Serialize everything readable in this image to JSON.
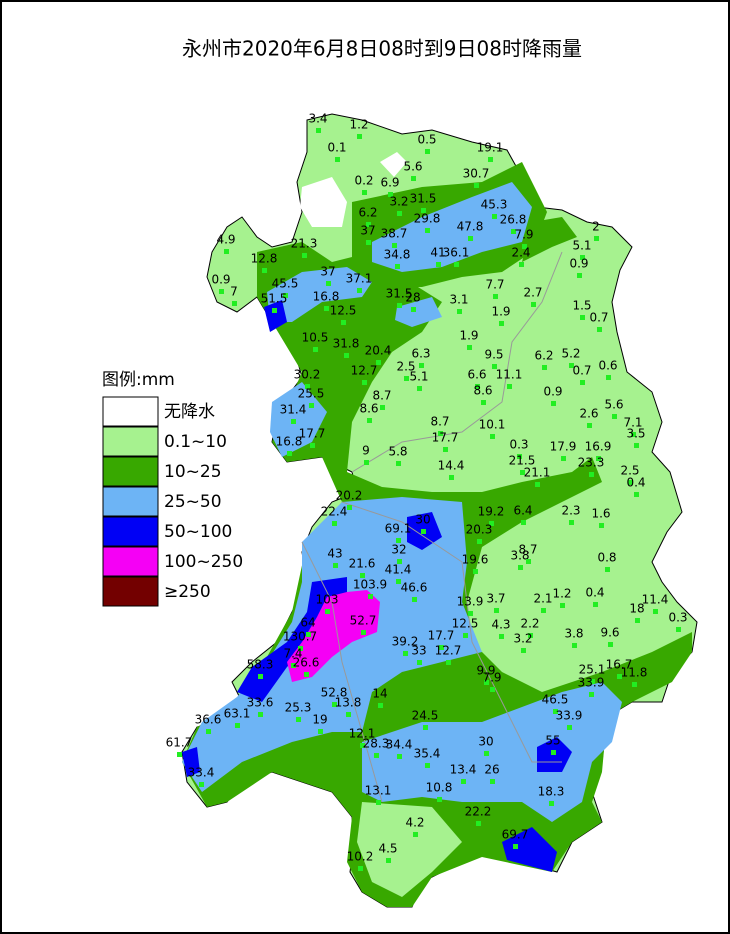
{
  "title": "永州市2020年6月8日08时到9日08时降雨量",
  "legend": {
    "title": "图例:mm",
    "items": [
      {
        "label": "无降水",
        "color": "#ffffff"
      },
      {
        "label": "0.1~10",
        "color": "#a6f28f"
      },
      {
        "label": "10~25",
        "color": "#38a800"
      },
      {
        "label": "25~50",
        "color": "#6db4f5"
      },
      {
        "label": "50~100",
        "color": "#0000f5"
      },
      {
        "label": "100~250",
        "color": "#f500f5"
      },
      {
        "label": "≥250",
        "color": "#730000"
      }
    ]
  },
  "stations": [
    3.4,
    1.2,
    0.1,
    0.5,
    19.1,
    5.6,
    0.2,
    6.9,
    30.7,
    31.5,
    3.2,
    45.3,
    6.2,
    29.8,
    47.8,
    26.8,
    7.9,
    37,
    38.7,
    2,
    5.1,
    34.8,
    41,
    36.1,
    2.4,
    0.9,
    4.9,
    12.8,
    21.3,
    37,
    45.5,
    37.1,
    0.9,
    7,
    7.7,
    2.7,
    16.8,
    31.5,
    28,
    3.1,
    1.5,
    51.5,
    12.5,
    1.9,
    0.7,
    1.9,
    10.5,
    31.8,
    20.4,
    6.3,
    9.5,
    6.2,
    5.2,
    2.5,
    12.7,
    5.1,
    6.6,
    11.1,
    0.7,
    0.6,
    30.2,
    25.5,
    8.7,
    8.6,
    8.6,
    0.9,
    5.6,
    31.4,
    2.6,
    7.1,
    8.7,
    3.5,
    17.7,
    17.7,
    10.1,
    16.8,
    0.3,
    17.9,
    16.9,
    9,
    5.8,
    21.5,
    23.3,
    14.4,
    21.1,
    2.5,
    0.4,
    20.2,
    22.4,
    19.2,
    6.4,
    2.3,
    1.6,
    69.1,
    30,
    20.3,
    32,
    43,
    21.6,
    19.6,
    3.8,
    8.7,
    0.8,
    41.4,
    103.9,
    46.6,
    2.1,
    1.2,
    0.4,
    103,
    13.9,
    3.7,
    11.4,
    18,
    0.3,
    52.7,
    64,
    12.5,
    4.3,
    2.2,
    130.7,
    3.2,
    3.8,
    9.6,
    39.2,
    17.7,
    33,
    12.7,
    7.4,
    26.6,
    58.3,
    16.7,
    25.1,
    11.8,
    9.9,
    7.9,
    33.9,
    52.8,
    14,
    46.5,
    33.6,
    13.8,
    63.1,
    25.3,
    24.5,
    33.9,
    36.6,
    19,
    12.1,
    28.3,
    34.4,
    30,
    55,
    61.7,
    35.4,
    33.4,
    13.4,
    26,
    13.1,
    10.8,
    18.3,
    22.2,
    4.2,
    69.7,
    4.5,
    10.2
  ]
}
